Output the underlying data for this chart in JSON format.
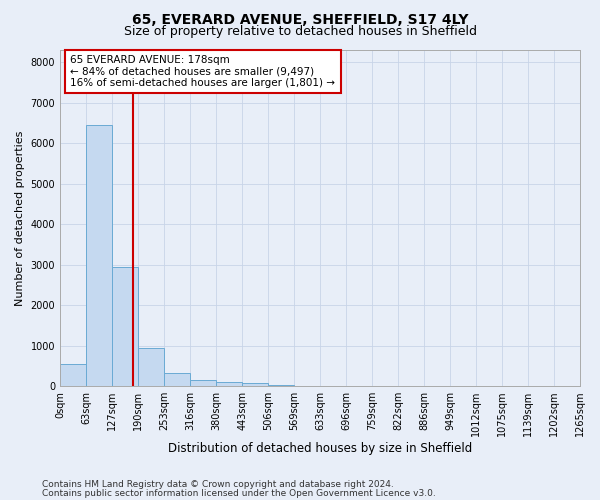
{
  "title1": "65, EVERARD AVENUE, SHEFFIELD, S17 4LY",
  "title2": "Size of property relative to detached houses in Sheffield",
  "xlabel": "Distribution of detached houses by size in Sheffield",
  "ylabel": "Number of detached properties",
  "bin_edges": [
    0,
    63,
    127,
    190,
    253,
    316,
    380,
    443,
    506,
    569,
    633,
    696,
    759,
    822,
    886,
    949,
    1012,
    1075,
    1139,
    1202,
    1265
  ],
  "bar_heights": [
    550,
    6450,
    2950,
    950,
    330,
    150,
    100,
    70,
    20,
    10,
    5,
    3,
    2,
    1,
    1,
    0,
    0,
    0,
    0,
    0
  ],
  "bar_color": "#c5d9f0",
  "bar_edge_color": "#6aaad4",
  "grid_color": "#c8d4e8",
  "background_color": "#e8eef8",
  "property_line_x": 178,
  "property_line_color": "#cc0000",
  "annotation_line1": "65 EVERARD AVENUE: 178sqm",
  "annotation_line2": "← 84% of detached houses are smaller (9,497)",
  "annotation_line3": "16% of semi-detached houses are larger (1,801) →",
  "annotation_box_color": "white",
  "annotation_box_edge": "#cc0000",
  "ylim": [
    0,
    8300
  ],
  "yticks": [
    0,
    1000,
    2000,
    3000,
    4000,
    5000,
    6000,
    7000,
    8000
  ],
  "tick_labels": [
    "0sqm",
    "63sqm",
    "127sqm",
    "190sqm",
    "253sqm",
    "316sqm",
    "380sqm",
    "443sqm",
    "506sqm",
    "569sqm",
    "633sqm",
    "696sqm",
    "759sqm",
    "822sqm",
    "886sqm",
    "949sqm",
    "1012sqm",
    "1075sqm",
    "1139sqm",
    "1202sqm",
    "1265sqm"
  ],
  "footnote1": "Contains HM Land Registry data © Crown copyright and database right 2024.",
  "footnote2": "Contains public sector information licensed under the Open Government Licence v3.0.",
  "title1_fontsize": 10,
  "title2_fontsize": 9,
  "xlabel_fontsize": 8.5,
  "ylabel_fontsize": 8,
  "tick_fontsize": 7,
  "annotation_fontsize": 7.5,
  "footnote_fontsize": 6.5
}
